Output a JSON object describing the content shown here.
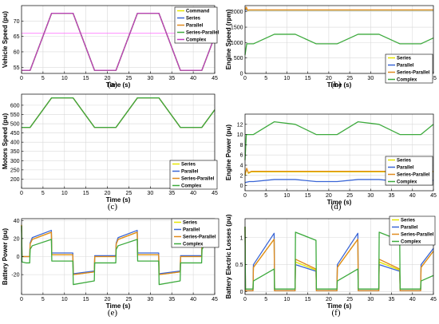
{
  "chart_data": [
    {
      "id": "a",
      "panel_label": "(a)",
      "type": "line",
      "xlabel": "Time (s)",
      "ylabel": "Vehicle Speed (pu)",
      "xlim": [
        0,
        45
      ],
      "ylim": [
        53,
        75
      ],
      "xticks": [
        0,
        5,
        10,
        15,
        20,
        25,
        30,
        35,
        40,
        45
      ],
      "yticks": [
        55,
        60,
        65,
        70
      ],
      "grid": true,
      "legend_position": "top-right",
      "x": [
        0,
        2,
        7,
        12,
        17,
        22,
        27,
        32,
        37,
        42,
        45
      ],
      "series": [
        {
          "name": "Command",
          "color": "#e6e600",
          "values": [
            54,
            54,
            72.5,
            72.5,
            54,
            54,
            72.5,
            72.5,
            54,
            54,
            65
          ]
        },
        {
          "name": "Series",
          "color": "#3a66d6",
          "values": [
            54,
            54,
            72.5,
            72.5,
            54,
            54,
            72.5,
            72.5,
            54,
            54,
            65
          ]
        },
        {
          "name": "Parallel",
          "color": "#e08a1e",
          "values": [
            54,
            54,
            72.5,
            72.5,
            54,
            54,
            72.5,
            72.5,
            54,
            54,
            65
          ]
        },
        {
          "name": "Series-Parallel",
          "color": "#3daa3d",
          "values": [
            54,
            54,
            72.5,
            72.5,
            54,
            54,
            72.5,
            72.5,
            54,
            54,
            65
          ]
        },
        {
          "name": "Complex",
          "color": "#c040c0",
          "values": [
            54,
            54,
            72.5,
            72.5,
            54,
            54,
            72.5,
            72.5,
            54,
            54,
            65
          ]
        }
      ],
      "reference_line": {
        "y": 66,
        "color": "#ff66ff"
      }
    },
    {
      "id": "b",
      "panel_label": "(b)",
      "type": "line",
      "xlabel": "Time (s)",
      "ylabel": "Engine Speed (rpm)",
      "xlim": [
        0,
        45
      ],
      "ylim": [
        0,
        2200
      ],
      "xticks": [
        0,
        5,
        10,
        15,
        20,
        25,
        30,
        35,
        40,
        45
      ],
      "yticks": [
        0,
        500,
        1000,
        1500,
        2000
      ],
      "grid": true,
      "legend_position": "bottom-right",
      "series": [
        {
          "name": "Series",
          "color": "#e6e600",
          "x": [
            0,
            0.3,
            0.6,
            1,
            45
          ],
          "values": [
            2050,
            2130,
            2040,
            2050,
            2050
          ]
        },
        {
          "name": "Parallel",
          "color": "#3a66d6",
          "x": [
            0,
            45
          ],
          "values": [
            2055,
            2055
          ]
        },
        {
          "name": "Series-Parallel",
          "color": "#e08a1e",
          "x": [
            0,
            0.3,
            0.6,
            1,
            45
          ],
          "values": [
            2060,
            2150,
            2050,
            2060,
            2060
          ]
        },
        {
          "name": "Complex",
          "color": "#3daa3d",
          "x": [
            0,
            0.4,
            2,
            7,
            12,
            17,
            22,
            27,
            32,
            37,
            42,
            45
          ],
          "values": [
            600,
            960,
            960,
            1270,
            1270,
            960,
            960,
            1270,
            1270,
            960,
            960,
            1150
          ]
        }
      ]
    },
    {
      "id": "c",
      "panel_label": "(c)",
      "type": "line",
      "xlabel": "Time (s)",
      "ylabel": "Motors Speed (pu)",
      "xlim": [
        0,
        45
      ],
      "ylim": [
        150,
        660
      ],
      "xticks": [
        0,
        5,
        10,
        15,
        20,
        25,
        30,
        35,
        40,
        45
      ],
      "yticks": [
        200,
        250,
        300,
        350,
        400,
        450,
        500,
        550,
        600
      ],
      "grid": true,
      "legend_position": "bottom-right",
      "x": [
        0,
        2,
        7,
        12,
        17,
        22,
        27,
        32,
        37,
        42,
        45
      ],
      "series": [
        {
          "name": "Series",
          "color": "#e6e600",
          "values": [
            480,
            480,
            640,
            640,
            480,
            480,
            640,
            640,
            480,
            480,
            575
          ]
        },
        {
          "name": "Parallel",
          "color": "#3a66d6",
          "values": [
            480,
            480,
            640,
            640,
            480,
            480,
            640,
            640,
            480,
            480,
            575
          ]
        },
        {
          "name": "Series-Parallel",
          "color": "#e08a1e",
          "values": [
            480,
            480,
            640,
            640,
            480,
            480,
            640,
            640,
            480,
            480,
            575
          ]
        },
        {
          "name": "Complex",
          "color": "#3daa3d",
          "values": [
            480,
            480,
            640,
            640,
            480,
            480,
            640,
            640,
            480,
            480,
            575
          ]
        }
      ]
    },
    {
      "id": "d",
      "panel_label": "(d)",
      "type": "line",
      "xlabel": "Time (s)",
      "ylabel": "Engine Power (pu)",
      "xlim": [
        0,
        45
      ],
      "ylim": [
        -1,
        14
      ],
      "xticks": [
        0,
        5,
        10,
        15,
        20,
        25,
        30,
        35,
        40,
        45
      ],
      "yticks": [
        0,
        2,
        4,
        6,
        8,
        10,
        12
      ],
      "grid": true,
      "legend_position": "middle-right",
      "series": [
        {
          "name": "Series",
          "color": "#e6e600",
          "x": [
            0,
            0.4,
            0.8,
            1.5,
            45
          ],
          "values": [
            2,
            3.3,
            2.4,
            2.7,
            2.7
          ]
        },
        {
          "name": "Parallel",
          "color": "#3a66d6",
          "x": [
            0,
            1,
            2,
            7,
            12,
            17,
            22,
            27,
            32,
            37,
            42,
            45
          ],
          "values": [
            0.6,
            0.8,
            0.8,
            1.2,
            1.2,
            0.8,
            0.8,
            1.2,
            1.2,
            0.8,
            0.8,
            1.05
          ]
        },
        {
          "name": "Series-Parallel",
          "color": "#e08a1e",
          "x": [
            0,
            0.4,
            0.8,
            1.5,
            45
          ],
          "values": [
            2.2,
            3.4,
            2.5,
            2.8,
            2.8
          ]
        },
        {
          "name": "Complex",
          "color": "#3daa3d",
          "x": [
            0,
            0.3,
            2,
            7,
            12,
            17,
            22,
            27,
            32,
            37,
            42,
            45
          ],
          "values": [
            5,
            10,
            10,
            12.5,
            12,
            10,
            10,
            12.5,
            12,
            10,
            10,
            12
          ]
        }
      ]
    },
    {
      "id": "e",
      "panel_label": "(e)",
      "type": "line",
      "xlabel": "Time (s)",
      "ylabel": "Battery Power (pu)",
      "xlim": [
        0,
        45
      ],
      "ylim": [
        -42,
        42
      ],
      "xticks": [
        0,
        5,
        10,
        15,
        20,
        25,
        30,
        35,
        40,
        45
      ],
      "yticks": [
        -20,
        0,
        20,
        40
      ],
      "grid": true,
      "legend_position": "top-right",
      "series": [
        {
          "name": "Series",
          "color": "#e6e600",
          "x": [
            0,
            0.1,
            1,
            1.9,
            2,
            2.5,
            6.95,
            7.05,
            11.95,
            12.05,
            16.95,
            17.05,
            21.95,
            22.05,
            22.5,
            26.95,
            27.05,
            31.95,
            32.05,
            36.95,
            37.05,
            41.95,
            42.05,
            42.5,
            45
          ],
          "values": [
            35,
            0,
            0,
            0,
            14,
            19,
            27,
            2,
            2,
            -20,
            -17,
            0,
            0,
            14,
            19,
            27,
            2,
            2,
            -20,
            -17,
            0,
            0,
            14,
            19,
            24
          ]
        },
        {
          "name": "Parallel",
          "color": "#3a66d6",
          "x": [
            0,
            0.1,
            1,
            1.9,
            2,
            2.5,
            6.95,
            7.05,
            11.95,
            12.05,
            16.95,
            17.05,
            21.95,
            22.05,
            22.5,
            26.95,
            27.05,
            31.95,
            32.05,
            36.95,
            37.05,
            41.95,
            42.05,
            42.5,
            45
          ],
          "values": [
            34,
            0,
            0,
            0,
            15,
            21,
            29,
            4,
            4,
            -19,
            -16,
            1,
            1,
            15,
            21,
            29,
            4,
            4,
            -19,
            -16,
            1,
            1,
            15,
            21,
            26
          ]
        },
        {
          "name": "Series-Parallel",
          "color": "#e08a1e",
          "x": [
            0,
            0.1,
            1,
            1.9,
            2,
            2.5,
            6.95,
            7.05,
            11.95,
            12.05,
            16.95,
            17.05,
            21.95,
            22.05,
            22.5,
            26.95,
            27.05,
            31.95,
            32.05,
            36.95,
            37.05,
            41.95,
            42.05,
            42.5,
            45
          ],
          "values": [
            35,
            0,
            0,
            0,
            14,
            19,
            27,
            2,
            2,
            -20,
            -17,
            0,
            0,
            14,
            19,
            27,
            2,
            2,
            -20,
            -17,
            0,
            0,
            14,
            19,
            24
          ]
        },
        {
          "name": "Complex",
          "color": "#3daa3d",
          "x": [
            0,
            0.1,
            1,
            1.9,
            2,
            2.5,
            6.95,
            7.05,
            11.95,
            12.05,
            16.95,
            17.05,
            21.95,
            22.05,
            22.5,
            26.95,
            27.05,
            31.95,
            32.05,
            36.95,
            37.05,
            41.95,
            42.05,
            42.5,
            45
          ],
          "values": [
            34,
            -6,
            -7,
            -7,
            8,
            12,
            19,
            -5,
            -5,
            -31,
            -27,
            -7,
            -7,
            8,
            12,
            19,
            -5,
            -5,
            -31,
            -27,
            -7,
            -7,
            8,
            12,
            16
          ]
        }
      ]
    },
    {
      "id": "f",
      "panel_label": "(f)",
      "type": "line",
      "xlabel": "Time (s)",
      "ylabel": "Battery Electric Losses (pu)",
      "xlim": [
        0,
        45
      ],
      "ylim": [
        -0.05,
        1.35
      ],
      "xticks": [
        0,
        5,
        10,
        15,
        20,
        25,
        30,
        35,
        40,
        45
      ],
      "yticks": [
        0,
        0.5,
        1
      ],
      "grid": true,
      "legend_position": "top-right",
      "series": [
        {
          "name": "Series",
          "color": "#e6e600",
          "x": [
            0,
            0.1,
            1.9,
            2,
            6.95,
            7.05,
            11.95,
            12.05,
            16.95,
            17.05,
            21.95,
            22.05,
            26.95,
            27.05,
            31.95,
            32.05,
            36.95,
            37.05,
            41.95,
            42.05,
            45
          ],
          "values": [
            1.2,
            0.02,
            0.02,
            0.45,
            0.97,
            0.02,
            0.02,
            0.55,
            0.4,
            0.02,
            0.02,
            0.45,
            0.97,
            0.02,
            0.02,
            0.55,
            0.4,
            0.02,
            0.02,
            0.45,
            0.75
          ]
        },
        {
          "name": "Parallel",
          "color": "#3a66d6",
          "x": [
            0,
            0.1,
            1.9,
            2,
            6.95,
            7.05,
            11.95,
            12.05,
            16.95,
            17.05,
            21.95,
            22.05,
            26.95,
            27.05,
            31.95,
            32.05,
            36.95,
            37.05,
            41.95,
            42.05,
            45
          ],
          "values": [
            1.2,
            0.02,
            0.02,
            0.5,
            1.08,
            0.02,
            0.02,
            0.5,
            0.38,
            0.02,
            0.02,
            0.5,
            1.08,
            0.02,
            0.02,
            0.5,
            0.38,
            0.02,
            0.02,
            0.5,
            0.8
          ]
        },
        {
          "name": "Series-Parallel",
          "color": "#e08a1e",
          "x": [
            0,
            0.1,
            1.9,
            2,
            6.95,
            7.05,
            11.95,
            12.05,
            16.95,
            17.05,
            21.95,
            22.05,
            26.95,
            27.05,
            31.95,
            32.05,
            36.95,
            37.05,
            41.95,
            42.05,
            45
          ],
          "values": [
            1.2,
            0.02,
            0.02,
            0.45,
            0.97,
            0.02,
            0.02,
            0.6,
            0.42,
            0.02,
            0.02,
            0.45,
            0.97,
            0.02,
            0.02,
            0.6,
            0.42,
            0.02,
            0.02,
            0.45,
            0.75
          ]
        },
        {
          "name": "Complex",
          "color": "#3daa3d",
          "x": [
            0,
            0.1,
            1.9,
            2,
            6.95,
            7.05,
            11.95,
            12.05,
            16.95,
            17.05,
            21.95,
            22.05,
            26.95,
            27.05,
            31.95,
            32.05,
            36.95,
            37.05,
            41.95,
            42.05,
            45
          ],
          "values": [
            1.2,
            0.05,
            0.05,
            0.2,
            0.42,
            0.05,
            0.05,
            1.1,
            0.95,
            0.05,
            0.05,
            0.2,
            0.42,
            0.05,
            0.05,
            1.1,
            0.95,
            0.05,
            0.05,
            0.2,
            0.3
          ]
        }
      ]
    }
  ]
}
